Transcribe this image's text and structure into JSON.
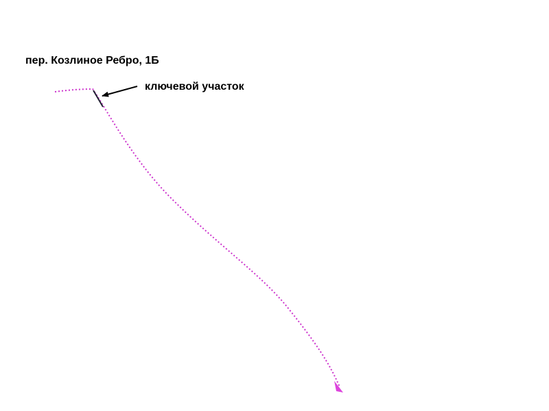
{
  "route": {
    "title": "пер. Козлиное Ребро, 1Б",
    "annotation": "ключевой участок"
  }
}
